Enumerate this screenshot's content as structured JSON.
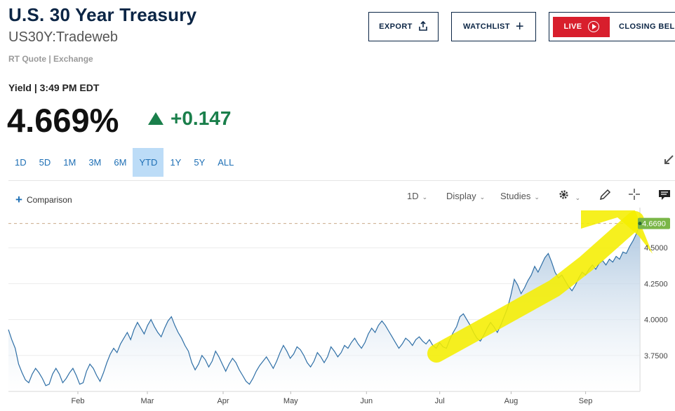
{
  "header": {
    "title": "U.S. 30 Year Treasury",
    "symbol": "US30Y:Tradeweb",
    "quote_source": "RT Quote | Exchange"
  },
  "actions": {
    "export_label": "EXPORT",
    "watchlist_label": "WATCHLIST",
    "live_label": "LIVE",
    "closing_label": "CLOSING BELL"
  },
  "quote": {
    "yield_label": "Yield | 3:49 PM EDT",
    "price": "4.669%",
    "change": "+0.147"
  },
  "ranges": [
    "1D",
    "5D",
    "1M",
    "3M",
    "6M",
    "YTD",
    "1Y",
    "5Y",
    "ALL"
  ],
  "active_range": "YTD",
  "toolbar": {
    "comparison_label": "Comparison",
    "interval_label": "1D",
    "display_label": "Display",
    "studies_label": "Studies"
  },
  "colors": {
    "accent": "#1e6fb5",
    "navy": "#0b2545",
    "up": "#1a7f4b",
    "live_red": "#d81e2c",
    "line": "#2f6fa6",
    "highlighter": "#f5ee00",
    "last_price_tag": "#7ab648"
  },
  "chart_data": {
    "type": "area",
    "x_ticks": [
      "Feb",
      "Mar",
      "Apr",
      "May",
      "Jun",
      "Jul",
      "Aug",
      "Sep"
    ],
    "y_ticks": [
      "3.7500",
      "4.0000",
      "4.2500",
      "4.5000"
    ],
    "last_value_label": "4.6690",
    "ylim": [
      3.5,
      4.75
    ],
    "series": [
      {
        "values": [
          3.93,
          3.86,
          3.8,
          3.69,
          3.63,
          3.58,
          3.56,
          3.62,
          3.66,
          3.63,
          3.59,
          3.54,
          3.55,
          3.62,
          3.66,
          3.62,
          3.56,
          3.59,
          3.63,
          3.66,
          3.61,
          3.55,
          3.56,
          3.64,
          3.69,
          3.66,
          3.61,
          3.57,
          3.63,
          3.7,
          3.76,
          3.8,
          3.77,
          3.83,
          3.87,
          3.91,
          3.86,
          3.93,
          3.98,
          3.94,
          3.9,
          3.96,
          4.0,
          3.95,
          3.91,
          3.88,
          3.94,
          3.99,
          4.02,
          3.96,
          3.91,
          3.87,
          3.82,
          3.78,
          3.7,
          3.65,
          3.69,
          3.75,
          3.72,
          3.67,
          3.71,
          3.78,
          3.74,
          3.69,
          3.64,
          3.69,
          3.73,
          3.7,
          3.65,
          3.61,
          3.57,
          3.55,
          3.59,
          3.64,
          3.68,
          3.71,
          3.74,
          3.7,
          3.66,
          3.71,
          3.77,
          3.82,
          3.78,
          3.73,
          3.76,
          3.81,
          3.79,
          3.75,
          3.7,
          3.67,
          3.71,
          3.77,
          3.74,
          3.7,
          3.74,
          3.81,
          3.78,
          3.74,
          3.77,
          3.82,
          3.8,
          3.84,
          3.87,
          3.83,
          3.8,
          3.84,
          3.9,
          3.94,
          3.91,
          3.96,
          3.99,
          3.96,
          3.92,
          3.88,
          3.84,
          3.8,
          3.83,
          3.87,
          3.85,
          3.82,
          3.86,
          3.88,
          3.85,
          3.83,
          3.86,
          3.82,
          3.8,
          3.84,
          3.81,
          3.8,
          3.86,
          3.91,
          3.95,
          4.02,
          4.04,
          4.0,
          3.96,
          3.91,
          3.87,
          3.85,
          3.89,
          3.94,
          3.98,
          3.95,
          3.91,
          3.96,
          4.02,
          4.08,
          4.17,
          4.28,
          4.24,
          4.18,
          4.22,
          4.27,
          4.31,
          4.37,
          4.33,
          4.38,
          4.43,
          4.46,
          4.4,
          4.33,
          4.29,
          4.31,
          4.27,
          4.23,
          4.2,
          4.24,
          4.29,
          4.33,
          4.31,
          4.35,
          4.38,
          4.35,
          4.39,
          4.41,
          4.38,
          4.42,
          4.4,
          4.44,
          4.42,
          4.47,
          4.46,
          4.51,
          4.55,
          4.6,
          4.669
        ]
      }
    ]
  }
}
